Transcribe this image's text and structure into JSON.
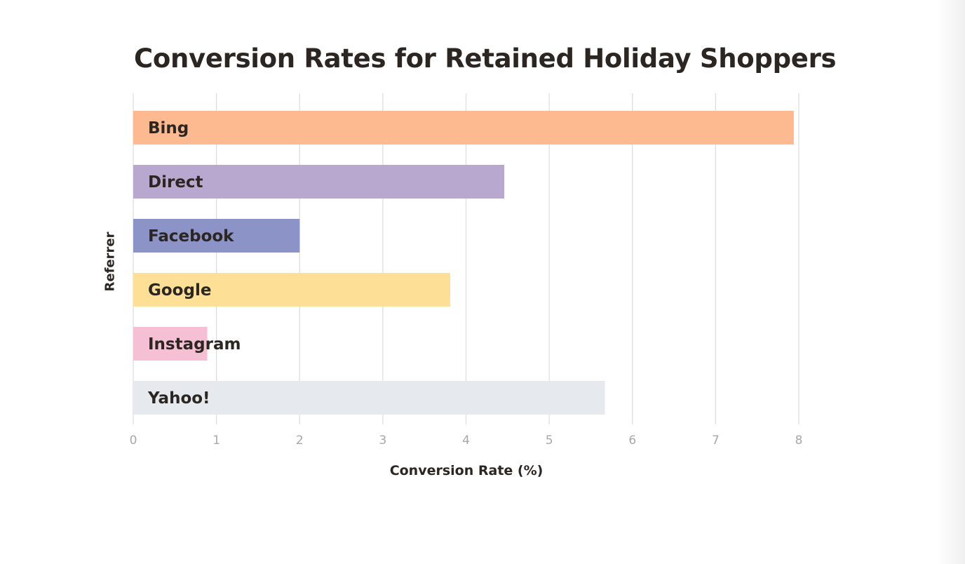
{
  "chart_data": {
    "type": "bar",
    "orientation": "horizontal",
    "title": "Conversion Rates for Retained Holiday Shoppers",
    "xlabel": "Conversion Rate (%)",
    "ylabel": "Referrer",
    "categories": [
      "Bing",
      "Direct",
      "Facebook",
      "Google",
      "Instagram",
      "Yahoo!"
    ],
    "values": [
      7.94,
      4.46,
      2.0,
      3.81,
      0.89,
      5.67
    ],
    "colors": [
      "#fdb98f",
      "#b8a7cf",
      "#8b93c7",
      "#fde096",
      "#f6c0d4",
      "#e6e9ee"
    ],
    "xlim": [
      0,
      8
    ],
    "xticks": [
      "0",
      "1",
      "2",
      "3",
      "4",
      "5",
      "6",
      "7",
      "8"
    ],
    "grid": true,
    "labels_inside_bars": true
  }
}
